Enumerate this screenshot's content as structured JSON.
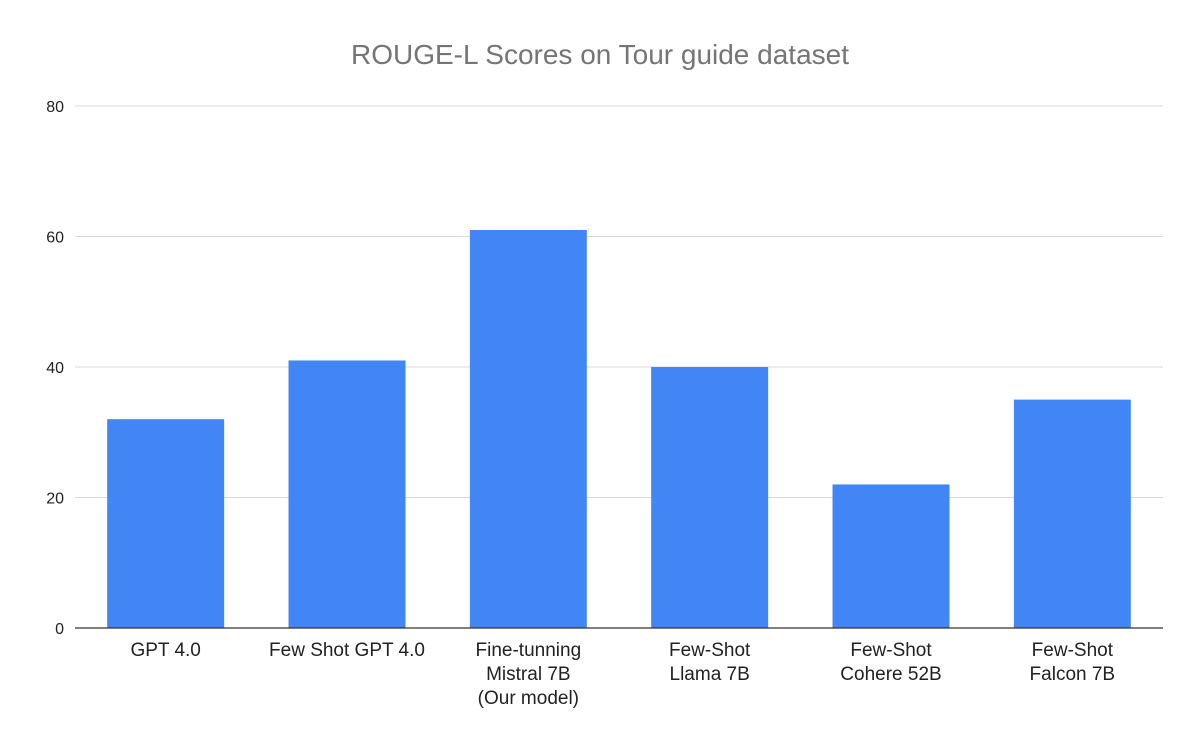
{
  "chart_data": {
    "type": "bar",
    "title": "ROUGE-L Scores on Tour guide dataset",
    "xlabel": "",
    "ylabel": "",
    "categories": [
      [
        "GPT 4.0"
      ],
      [
        "Few Shot GPT 4.0"
      ],
      [
        "Fine-tunning",
        "Mistral 7B",
        "(Our model)"
      ],
      [
        "Few-Shot",
        "Llama 7B"
      ],
      [
        "Few-Shot",
        "Cohere 52B"
      ],
      [
        "Few-Shot",
        "Falcon 7B"
      ]
    ],
    "values": [
      32,
      41,
      61,
      40,
      22,
      35
    ],
    "ylim": [
      0,
      80
    ],
    "yticks": [
      0,
      20,
      40,
      60,
      80
    ],
    "grid": true,
    "legend": "none",
    "colors": {
      "bar": "#4285f4"
    }
  }
}
